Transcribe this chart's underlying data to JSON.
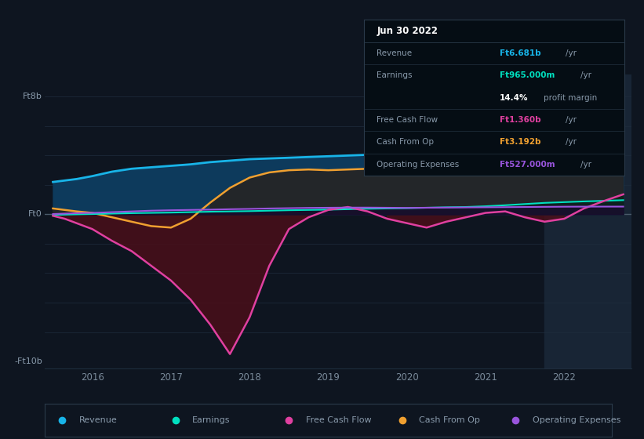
{
  "bg_color": "#0e1520",
  "plot_bg_color": "#0e1520",
  "grid_color": "#1e2d3d",
  "zero_line_color": "#4a5a6a",
  "x_ticks": [
    2016,
    2017,
    2018,
    2019,
    2020,
    2021,
    2022
  ],
  "ylim": [
    -10.5,
    9.5
  ],
  "xlim": [
    2015.4,
    2022.85
  ],
  "highlight_x_start": 2021.75,
  "highlight_x_end": 2022.85,
  "revenue": {
    "x": [
      2015.5,
      2015.65,
      2015.8,
      2016.0,
      2016.25,
      2016.5,
      2016.75,
      2017.0,
      2017.25,
      2017.5,
      2017.75,
      2018.0,
      2018.25,
      2018.5,
      2018.75,
      2019.0,
      2019.25,
      2019.5,
      2019.75,
      2020.0,
      2020.25,
      2020.5,
      2020.75,
      2021.0,
      2021.25,
      2021.5,
      2021.75,
      2022.0,
      2022.25,
      2022.5,
      2022.75
    ],
    "y": [
      2.2,
      2.3,
      2.4,
      2.6,
      2.9,
      3.1,
      3.2,
      3.3,
      3.4,
      3.55,
      3.65,
      3.75,
      3.8,
      3.85,
      3.9,
      3.95,
      4.0,
      4.05,
      4.15,
      4.25,
      4.3,
      4.4,
      4.5,
      4.65,
      4.9,
      5.3,
      5.8,
      6.0,
      6.3,
      6.5,
      6.681
    ],
    "color": "#18b4e8",
    "fill_color": "#0d3a5c",
    "label": "Revenue"
  },
  "cash_from_op": {
    "x": [
      2015.5,
      2015.65,
      2015.8,
      2016.0,
      2016.25,
      2016.5,
      2016.75,
      2017.0,
      2017.25,
      2017.5,
      2017.75,
      2018.0,
      2018.25,
      2018.5,
      2018.75,
      2019.0,
      2019.25,
      2019.5,
      2019.75,
      2020.0,
      2020.25,
      2020.5,
      2020.75,
      2021.0,
      2021.25,
      2021.5,
      2021.75,
      2022.0,
      2022.25,
      2022.5,
      2022.75
    ],
    "y": [
      0.4,
      0.3,
      0.2,
      0.1,
      -0.2,
      -0.5,
      -0.8,
      -0.9,
      -0.3,
      0.8,
      1.8,
      2.5,
      2.85,
      3.0,
      3.05,
      3.0,
      3.05,
      3.1,
      3.2,
      3.5,
      3.8,
      3.9,
      3.75,
      3.55,
      3.45,
      3.3,
      3.25,
      3.1,
      3.1,
      3.15,
      3.192
    ],
    "color": "#f0a030",
    "fill_color": "#2a2a10",
    "label": "Cash From Op"
  },
  "earnings": {
    "x": [
      2015.5,
      2015.65,
      2015.8,
      2016.0,
      2016.25,
      2016.5,
      2016.75,
      2017.0,
      2017.25,
      2017.5,
      2017.75,
      2018.0,
      2018.25,
      2018.5,
      2018.75,
      2019.0,
      2019.25,
      2019.5,
      2019.75,
      2020.0,
      2020.25,
      2020.5,
      2020.75,
      2021.0,
      2021.25,
      2021.5,
      2021.75,
      2022.0,
      2022.25,
      2022.5,
      2022.75
    ],
    "y": [
      -0.05,
      -0.02,
      0.0,
      0.02,
      0.05,
      0.08,
      0.1,
      0.12,
      0.15,
      0.18,
      0.2,
      0.22,
      0.25,
      0.28,
      0.3,
      0.32,
      0.35,
      0.38,
      0.4,
      0.42,
      0.45,
      0.48,
      0.5,
      0.55,
      0.62,
      0.7,
      0.78,
      0.83,
      0.88,
      0.92,
      0.965
    ],
    "color": "#00e0c0",
    "fill_color": "#0a2a2a",
    "label": "Earnings"
  },
  "free_cash_flow": {
    "x": [
      2015.5,
      2015.65,
      2015.8,
      2016.0,
      2016.25,
      2016.5,
      2016.75,
      2017.0,
      2017.25,
      2017.5,
      2017.75,
      2018.0,
      2018.25,
      2018.5,
      2018.75,
      2019.0,
      2019.25,
      2019.5,
      2019.75,
      2020.0,
      2020.25,
      2020.5,
      2020.75,
      2021.0,
      2021.25,
      2021.5,
      2021.75,
      2022.0,
      2022.25,
      2022.5,
      2022.75
    ],
    "y": [
      -0.1,
      -0.3,
      -0.6,
      -1.0,
      -1.8,
      -2.5,
      -3.5,
      -4.5,
      -5.8,
      -7.5,
      -9.5,
      -7.0,
      -3.5,
      -1.0,
      -0.2,
      0.3,
      0.5,
      0.2,
      -0.3,
      -0.6,
      -0.9,
      -0.5,
      -0.2,
      0.1,
      0.2,
      -0.2,
      -0.5,
      -0.3,
      0.4,
      0.9,
      1.36
    ],
    "color": "#e040a0",
    "fill_color": "#4a0f1a",
    "label": "Free Cash Flow"
  },
  "operating_expenses": {
    "x": [
      2015.5,
      2015.65,
      2015.8,
      2016.0,
      2016.25,
      2016.5,
      2016.75,
      2017.0,
      2017.25,
      2017.5,
      2017.75,
      2018.0,
      2018.25,
      2018.5,
      2018.75,
      2019.0,
      2019.25,
      2019.5,
      2019.75,
      2020.0,
      2020.25,
      2020.5,
      2020.75,
      2021.0,
      2021.25,
      2021.5,
      2021.75,
      2022.0,
      2022.25,
      2022.5,
      2022.75
    ],
    "y": [
      0.02,
      0.05,
      0.08,
      0.1,
      0.15,
      0.2,
      0.25,
      0.28,
      0.3,
      0.32,
      0.35,
      0.37,
      0.4,
      0.42,
      0.44,
      0.45,
      0.46,
      0.46,
      0.45,
      0.44,
      0.45,
      0.46,
      0.47,
      0.48,
      0.49,
      0.5,
      0.51,
      0.52,
      0.524,
      0.526,
      0.527
    ],
    "color": "#9955dd",
    "fill_color": "#1a0a30",
    "label": "Operating Expenses"
  },
  "tooltip": {
    "date": "Jun 30 2022",
    "bg_color": "#050d14",
    "border_color": "#2a3a4a",
    "rows": [
      {
        "label": "Revenue",
        "value": "Ft6.681b",
        "value_color": "#18b4e8",
        "unit": " /yr"
      },
      {
        "label": "Earnings",
        "value": "Ft965.000m",
        "value_color": "#00e0c0",
        "unit": " /yr"
      },
      {
        "label": "",
        "value": "14.4%",
        "value_color": "#ffffff",
        "unit": " profit margin"
      },
      {
        "label": "Free Cash Flow",
        "value": "Ft1.360b",
        "value_color": "#e040a0",
        "unit": " /yr"
      },
      {
        "label": "Cash From Op",
        "value": "Ft3.192b",
        "value_color": "#f0a030",
        "unit": " /yr"
      },
      {
        "label": "Operating Expenses",
        "value": "Ft527.000m",
        "value_color": "#9955dd",
        "unit": " /yr"
      }
    ]
  },
  "legend_items": [
    {
      "label": "Revenue",
      "color": "#18b4e8"
    },
    {
      "label": "Earnings",
      "color": "#00e0c0"
    },
    {
      "label": "Free Cash Flow",
      "color": "#e040a0"
    },
    {
      "label": "Cash From Op",
      "color": "#f0a030"
    },
    {
      "label": "Operating Expenses",
      "color": "#9955dd"
    }
  ]
}
